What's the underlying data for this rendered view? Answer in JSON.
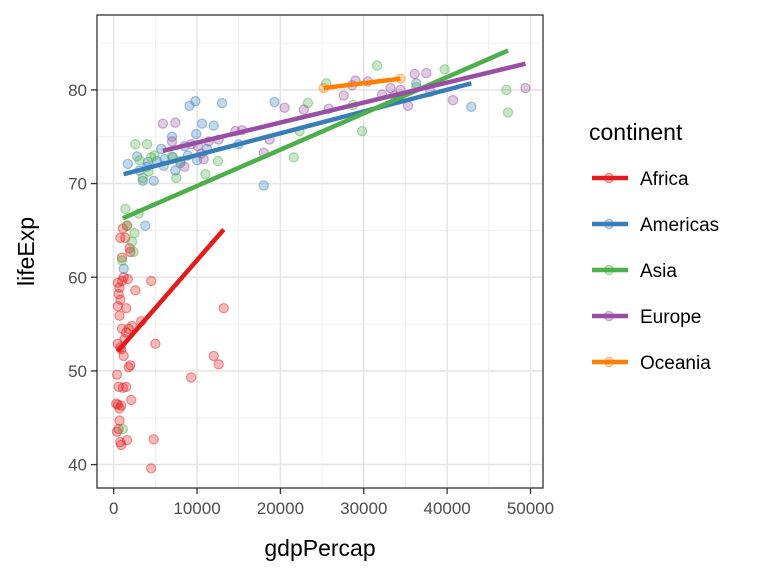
{
  "chart_data": {
    "type": "scatter",
    "title": "",
    "xlabel": "gdpPercap",
    "ylabel": "lifeExp",
    "xlim": [
      -2000,
      51500
    ],
    "ylim": [
      37.5,
      88
    ],
    "xticks": [
      0,
      10000,
      20000,
      30000,
      40000,
      50000
    ],
    "xtick_labels": [
      "0",
      "10000",
      "20000",
      "30000",
      "40000",
      "50000"
    ],
    "yticks": [
      40,
      50,
      60,
      70,
      80
    ],
    "ytick_labels": [
      "40",
      "50",
      "60",
      "70",
      "80"
    ],
    "grid": true,
    "legend": {
      "title": "continent",
      "position": "right"
    },
    "series": [
      {
        "name": "Africa",
        "color": "#E41A1C",
        "points": [
          [
            300,
            46.5
          ],
          [
            500,
            46.4
          ],
          [
            700,
            46.0
          ],
          [
            900,
            46.3
          ],
          [
            600,
            48.3
          ],
          [
            1100,
            48.2
          ],
          [
            1500,
            48.3
          ],
          [
            400,
            49.6
          ],
          [
            1800,
            50.4
          ],
          [
            2000,
            50.6
          ],
          [
            1200,
            51.6
          ],
          [
            900,
            52.3
          ],
          [
            500,
            52.9
          ],
          [
            800,
            52.5
          ],
          [
            1300,
            53.4
          ],
          [
            2200,
            54.8
          ],
          [
            3300,
            55.3
          ],
          [
            1000,
            54.5
          ],
          [
            1500,
            54.1
          ],
          [
            700,
            55.9
          ],
          [
            500,
            56.9
          ],
          [
            1500,
            56.7
          ],
          [
            800,
            57.6
          ],
          [
            600,
            58.2
          ],
          [
            2600,
            58.6
          ],
          [
            700,
            58.9
          ],
          [
            500,
            59.4
          ],
          [
            1000,
            59.6
          ],
          [
            4500,
            59.6
          ],
          [
            1700,
            59.8
          ],
          [
            1200,
            60.0
          ],
          [
            2000,
            62.7
          ],
          [
            800,
            64.2
          ],
          [
            1600,
            65.5
          ],
          [
            1900,
            63.1
          ],
          [
            1000,
            62.1
          ],
          [
            1100,
            65.2
          ],
          [
            1400,
            64.2
          ],
          [
            600,
            43.8
          ],
          [
            400,
            43.5
          ],
          [
            800,
            42.4
          ],
          [
            900,
            42.1
          ],
          [
            1600,
            42.6
          ],
          [
            700,
            44.7
          ],
          [
            4800,
            42.7
          ],
          [
            4500,
            39.6
          ],
          [
            2100,
            46.9
          ],
          [
            5000,
            52.9
          ],
          [
            12000,
            51.6
          ],
          [
            12600,
            50.7
          ],
          [
            9300,
            49.3
          ],
          [
            13200,
            56.7
          ],
          [
            1800,
            54.5
          ]
        ],
        "fit": [
          [
            500,
            52.1
          ],
          [
            13200,
            65.1
          ]
        ]
      },
      {
        "name": "Americas",
        "color": "#377EB8",
        "points": [
          [
            1200,
            60.9
          ],
          [
            3800,
            65.5
          ],
          [
            1700,
            72.1
          ],
          [
            2800,
            72.9
          ],
          [
            3100,
            71.4
          ],
          [
            3500,
            70.3
          ],
          [
            4000,
            71.8
          ],
          [
            4100,
            72.3
          ],
          [
            5200,
            72.4
          ],
          [
            5700,
            73.7
          ],
          [
            6000,
            71.9
          ],
          [
            6100,
            72.6
          ],
          [
            7100,
            72.8
          ],
          [
            7400,
            71.4
          ],
          [
            8000,
            72.2
          ],
          [
            8900,
            73.0
          ],
          [
            9100,
            78.3
          ],
          [
            9800,
            78.8
          ],
          [
            9900,
            75.3
          ],
          [
            10600,
            76.4
          ],
          [
            11200,
            73.7
          ],
          [
            12000,
            76.2
          ],
          [
            13000,
            78.6
          ],
          [
            15000,
            74.2
          ],
          [
            18000,
            69.8
          ],
          [
            19300,
            78.7
          ],
          [
            36300,
            80.7
          ],
          [
            42900,
            78.2
          ],
          [
            4800,
            70.3
          ],
          [
            7000,
            75.0
          ],
          [
            8500,
            74.0
          ],
          [
            10000,
            72.5
          ]
        ],
        "fit": [
          [
            1200,
            71.0
          ],
          [
            42900,
            80.7
          ]
        ]
      },
      {
        "name": "Asia",
        "color": "#4DAF4A",
        "points": [
          [
            1400,
            67.3
          ],
          [
            1600,
            65.5
          ],
          [
            2200,
            63.8
          ],
          [
            2400,
            62.7
          ],
          [
            2500,
            64.7
          ],
          [
            2600,
            74.2
          ],
          [
            3000,
            66.8
          ],
          [
            3100,
            72.5
          ],
          [
            3500,
            70.6
          ],
          [
            4000,
            74.2
          ],
          [
            4200,
            71.3
          ],
          [
            4500,
            72.8
          ],
          [
            4900,
            73.0
          ],
          [
            7000,
            72.9
          ],
          [
            7500,
            70.6
          ],
          [
            8000,
            72.4
          ],
          [
            11000,
            71.0
          ],
          [
            12500,
            72.4
          ],
          [
            21600,
            72.8
          ],
          [
            22300,
            75.6
          ],
          [
            23300,
            78.6
          ],
          [
            25500,
            80.7
          ],
          [
            28700,
            78.4
          ],
          [
            29800,
            75.6
          ],
          [
            31600,
            82.6
          ],
          [
            36300,
            80.3
          ],
          [
            39700,
            82.2
          ],
          [
            47100,
            80.0
          ],
          [
            47300,
            77.6
          ],
          [
            1100,
            43.8
          ],
          [
            1000,
            61.8
          ]
        ],
        "fit": [
          [
            1100,
            66.3
          ],
          [
            47300,
            84.2
          ]
        ]
      },
      {
        "name": "Europe",
        "color": "#984EA3",
        "points": [
          [
            5900,
            76.4
          ],
          [
            7400,
            76.5
          ],
          [
            8500,
            71.8
          ],
          [
            9300,
            74.2
          ],
          [
            10100,
            74.0
          ],
          [
            10500,
            73.2
          ],
          [
            10800,
            72.6
          ],
          [
            11400,
            74.5
          ],
          [
            12600,
            74.7
          ],
          [
            14600,
            75.6
          ],
          [
            15400,
            75.7
          ],
          [
            18000,
            73.3
          ],
          [
            18700,
            74.7
          ],
          [
            20500,
            78.1
          ],
          [
            22800,
            77.9
          ],
          [
            25800,
            78.0
          ],
          [
            27600,
            79.4
          ],
          [
            28600,
            80.5
          ],
          [
            29000,
            81.0
          ],
          [
            30500,
            80.9
          ],
          [
            32200,
            79.5
          ],
          [
            33200,
            80.2
          ],
          [
            33700,
            79.4
          ],
          [
            34400,
            80.0
          ],
          [
            35300,
            78.3
          ],
          [
            36100,
            81.7
          ],
          [
            37500,
            81.8
          ],
          [
            38000,
            79.8
          ],
          [
            40700,
            78.9
          ],
          [
            49400,
            80.2
          ],
          [
            7000,
            74.5
          ]
        ],
        "fit": [
          [
            5900,
            73.5
          ],
          [
            49400,
            82.8
          ]
        ]
      },
      {
        "name": "Oceania",
        "color": "#FF7F00",
        "points": [
          [
            25200,
            80.2
          ],
          [
            34400,
            81.2
          ]
        ],
        "fit": [
          [
            25200,
            80.2
          ],
          [
            34400,
            81.2
          ]
        ]
      }
    ]
  }
}
